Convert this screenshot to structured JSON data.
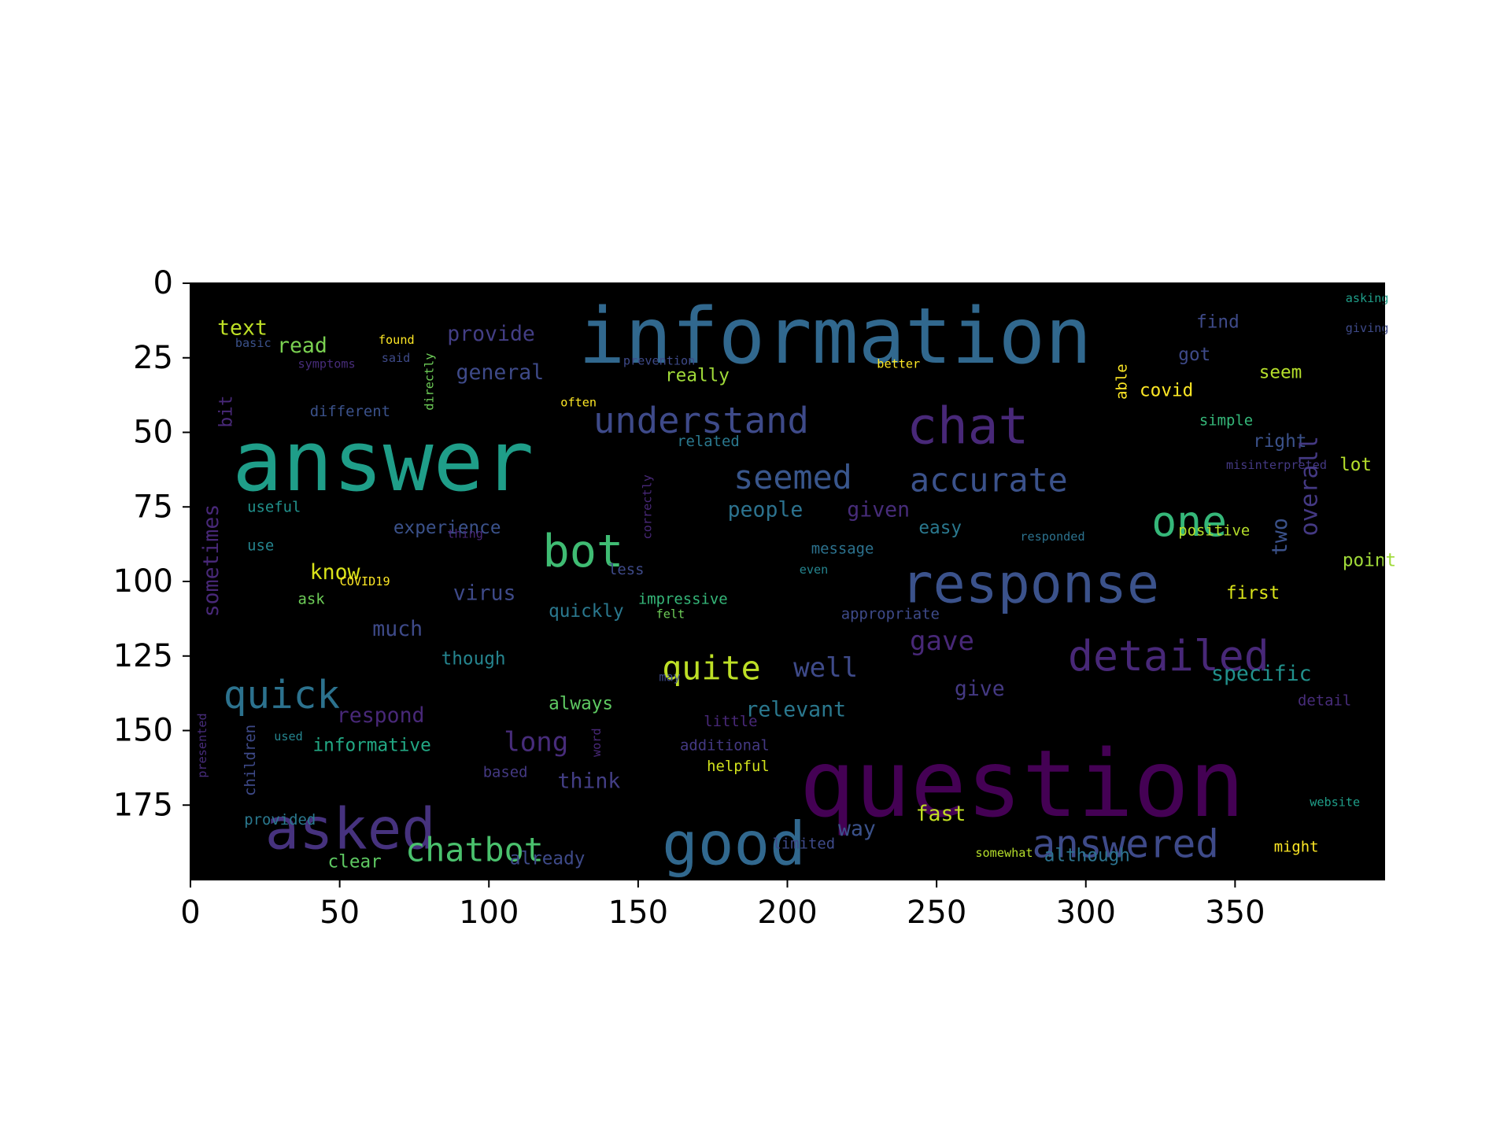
{
  "chart_data": {
    "type": "wordcloud-image",
    "xlim": [
      0,
      400
    ],
    "ylim": [
      0,
      200
    ],
    "y_inverted": true,
    "x_ticks": [
      0,
      50,
      100,
      150,
      200,
      250,
      300,
      350
    ],
    "y_ticks": [
      0,
      25,
      50,
      75,
      100,
      125,
      150,
      175
    ],
    "x_tick_labels": [
      "0",
      "50",
      "100",
      "150",
      "200",
      "250",
      "300",
      "350"
    ],
    "y_tick_labels": [
      "0",
      "25",
      "50",
      "75",
      "100",
      "125",
      "150",
      "175"
    ],
    "background_color": "#000000",
    "colormap": "viridis",
    "words": [
      {
        "text": "information",
        "x": 130,
        "y": 18,
        "size": 26,
        "color": "#31688e"
      },
      {
        "text": "answer",
        "x": 14,
        "y": 60,
        "size": 28,
        "color": "#1f9e89"
      },
      {
        "text": "question",
        "x": 204,
        "y": 168,
        "size": 31,
        "color": "#440154"
      },
      {
        "text": "response",
        "x": 238,
        "y": 101,
        "size": 18,
        "color": "#3b528b"
      },
      {
        "text": "chat",
        "x": 240,
        "y": 48,
        "size": 17,
        "color": "#482878"
      },
      {
        "text": "asked",
        "x": 25,
        "y": 183,
        "size": 19,
        "color": "#46327e"
      },
      {
        "text": "good",
        "x": 158,
        "y": 188,
        "size": 20,
        "color": "#31688e"
      },
      {
        "text": "detailed",
        "x": 294,
        "y": 125,
        "size": 14,
        "color": "#482878"
      },
      {
        "text": "answered",
        "x": 282,
        "y": 188,
        "size": 13,
        "color": "#3e4a89"
      },
      {
        "text": "one",
        "x": 322,
        "y": 80,
        "size": 14,
        "color": "#35b779"
      },
      {
        "text": "quick",
        "x": 11,
        "y": 138,
        "size": 13,
        "color": "#2c728e"
      },
      {
        "text": "bot",
        "x": 118,
        "y": 90,
        "size": 15,
        "color": "#3fbc73"
      },
      {
        "text": "understand",
        "x": 135,
        "y": 46,
        "size": 12,
        "color": "#3e4a89"
      },
      {
        "text": "accurate",
        "x": 241,
        "y": 66,
        "size": 11,
        "color": "#3b528b"
      },
      {
        "text": "seemed",
        "x": 182,
        "y": 65,
        "size": 11,
        "color": "#39568c"
      },
      {
        "text": "chatbot",
        "x": 72,
        "y": 190,
        "size": 11,
        "color": "#4ac16d"
      },
      {
        "text": "quite",
        "x": 158,
        "y": 129,
        "size": 11,
        "color": "#bddf26"
      },
      {
        "text": "well",
        "x": 202,
        "y": 129,
        "size": 9,
        "color": "#3e4a89"
      },
      {
        "text": "gave",
        "x": 241,
        "y": 120,
        "size": 9,
        "color": "#482878"
      },
      {
        "text": "long",
        "x": 105,
        "y": 154,
        "size": 9,
        "color": "#472c7a"
      },
      {
        "text": "text",
        "x": 9,
        "y": 15,
        "size": 7,
        "color": "#bddf26"
      },
      {
        "text": "read",
        "x": 29,
        "y": 21,
        "size": 7,
        "color": "#7ad151"
      },
      {
        "text": "provide",
        "x": 86,
        "y": 17,
        "size": 7,
        "color": "#433e85"
      },
      {
        "text": "general",
        "x": 89,
        "y": 30,
        "size": 7,
        "color": "#3e4a89"
      },
      {
        "text": "really",
        "x": 159,
        "y": 31,
        "size": 6,
        "color": "#a0da39"
      },
      {
        "text": "seem",
        "x": 358,
        "y": 30,
        "size": 6,
        "color": "#b5de2b"
      },
      {
        "text": "covid",
        "x": 318,
        "y": 36,
        "size": 6,
        "color": "#fde725"
      },
      {
        "text": "different",
        "x": 40,
        "y": 43,
        "size": 5,
        "color": "#3b528b"
      },
      {
        "text": "related",
        "x": 163,
        "y": 53,
        "size": 5,
        "color": "#2a788e"
      },
      {
        "text": "people",
        "x": 180,
        "y": 76,
        "size": 7,
        "color": "#2c728e"
      },
      {
        "text": "given",
        "x": 220,
        "y": 76,
        "size": 7,
        "color": "#472c7a"
      },
      {
        "text": "easy",
        "x": 244,
        "y": 82,
        "size": 6,
        "color": "#2a788e"
      },
      {
        "text": "experience",
        "x": 68,
        "y": 82,
        "size": 6,
        "color": "#3b528b"
      },
      {
        "text": "useful",
        "x": 19,
        "y": 75,
        "size": 5,
        "color": "#21918c"
      },
      {
        "text": "know",
        "x": 40,
        "y": 97,
        "size": 7,
        "color": "#d8e219"
      },
      {
        "text": "use",
        "x": 19,
        "y": 88,
        "size": 5,
        "color": "#25848e"
      },
      {
        "text": "ask",
        "x": 36,
        "y": 106,
        "size": 5,
        "color": "#6ece58"
      },
      {
        "text": "virus",
        "x": 88,
        "y": 104,
        "size": 7,
        "color": "#3e4a89"
      },
      {
        "text": "quickly",
        "x": 120,
        "y": 110,
        "size": 6,
        "color": "#2a788e"
      },
      {
        "text": "impressive",
        "x": 150,
        "y": 106,
        "size": 5,
        "color": "#35b779"
      },
      {
        "text": "much",
        "x": 61,
        "y": 116,
        "size": 7,
        "color": "#3e4a89"
      },
      {
        "text": "though",
        "x": 84,
        "y": 126,
        "size": 6,
        "color": "#25848e"
      },
      {
        "text": "always",
        "x": 120,
        "y": 141,
        "size": 6,
        "color": "#5ec962"
      },
      {
        "text": "respond",
        "x": 49,
        "y": 145,
        "size": 7,
        "color": "#482878"
      },
      {
        "text": "informative",
        "x": 41,
        "y": 155,
        "size": 6,
        "color": "#22a884"
      },
      {
        "text": "relevant",
        "x": 186,
        "y": 143,
        "size": 7,
        "color": "#2a788e"
      },
      {
        "text": "give",
        "x": 256,
        "y": 136,
        "size": 7,
        "color": "#443983"
      },
      {
        "text": "specific",
        "x": 342,
        "y": 131,
        "size": 7,
        "color": "#21918c"
      },
      {
        "text": "helpful",
        "x": 173,
        "y": 162,
        "size": 5,
        "color": "#d0e11c"
      },
      {
        "text": "think",
        "x": 123,
        "y": 167,
        "size": 7,
        "color": "#433e85"
      },
      {
        "text": "provided",
        "x": 18,
        "y": 180,
        "size": 5,
        "color": "#2a788e"
      },
      {
        "text": "fast",
        "x": 243,
        "y": 178,
        "size": 7,
        "color": "#c2df23"
      },
      {
        "text": "way",
        "x": 217,
        "y": 183,
        "size": 7,
        "color": "#3b528b"
      },
      {
        "text": "clear",
        "x": 46,
        "y": 194,
        "size": 6,
        "color": "#5ec962"
      },
      {
        "text": "already",
        "x": 107,
        "y": 193,
        "size": 6,
        "color": "#3e4a89"
      },
      {
        "text": "although",
        "x": 286,
        "y": 192,
        "size": 6,
        "color": "#2c728e"
      },
      {
        "text": "first",
        "x": 347,
        "y": 104,
        "size": 6,
        "color": "#d8e219"
      },
      {
        "text": "point",
        "x": 386,
        "y": 93,
        "size": 6,
        "color": "#a0da39"
      },
      {
        "text": "lot",
        "x": 385,
        "y": 61,
        "size": 6,
        "color": "#b5de2b"
      },
      {
        "text": "right",
        "x": 356,
        "y": 53,
        "size": 6,
        "color": "#3b528b"
      },
      {
        "text": "simple",
        "x": 338,
        "y": 46,
        "size": 5,
        "color": "#35b779"
      },
      {
        "text": "got",
        "x": 331,
        "y": 24,
        "size": 6,
        "color": "#3e4a89"
      },
      {
        "text": "find",
        "x": 337,
        "y": 13,
        "size": 6,
        "color": "#3e4a89"
      },
      {
        "text": "message",
        "x": 208,
        "y": 89,
        "size": 5,
        "color": "#2c728e"
      },
      {
        "text": "positive",
        "x": 331,
        "y": 83,
        "size": 5,
        "color": "#b5de2b"
      },
      {
        "text": "less",
        "x": 140,
        "y": 96,
        "size": 5,
        "color": "#3e4a89"
      },
      {
        "text": "appropriate",
        "x": 218,
        "y": 111,
        "size": 5,
        "color": "#3e4a89"
      },
      {
        "text": "little",
        "x": 172,
        "y": 147,
        "size": 5,
        "color": "#482878"
      },
      {
        "text": "additional",
        "x": 164,
        "y": 155,
        "size": 5,
        "color": "#443983"
      },
      {
        "text": "based",
        "x": 98,
        "y": 164,
        "size": 5,
        "color": "#443983"
      },
      {
        "text": "limited",
        "x": 195,
        "y": 188,
        "size": 5,
        "color": "#3e4a89"
      },
      {
        "text": "somewhat",
        "x": 263,
        "y": 191,
        "size": 4,
        "color": "#b5de2b"
      },
      {
        "text": "might",
        "x": 363,
        "y": 189,
        "size": 5,
        "color": "#fde725"
      },
      {
        "text": "detail",
        "x": 371,
        "y": 140,
        "size": 5,
        "color": "#472c7a"
      },
      {
        "text": "misinterpreted",
        "x": 347,
        "y": 61,
        "size": 4,
        "color": "#443983"
      },
      {
        "text": "responded",
        "x": 278,
        "y": 85,
        "size": 4,
        "color": "#2c728e"
      },
      {
        "text": "often",
        "x": 124,
        "y": 40,
        "size": 4,
        "color": "#fde725"
      },
      {
        "text": "better",
        "x": 230,
        "y": 27,
        "size": 4,
        "color": "#fde725"
      },
      {
        "text": "found",
        "x": 63,
        "y": 19,
        "size": 4,
        "color": "#fde725"
      },
      {
        "text": "said",
        "x": 64,
        "y": 25,
        "size": 4,
        "color": "#3e4a89"
      },
      {
        "text": "basic",
        "x": 15,
        "y": 20,
        "size": 4,
        "color": "#3b528b"
      },
      {
        "text": "symptoms",
        "x": 36,
        "y": 27,
        "size": 4,
        "color": "#472c7a"
      },
      {
        "text": "prevention",
        "x": 145,
        "y": 26,
        "size": 4,
        "color": "#3e4a89"
      },
      {
        "text": "asking",
        "x": 387,
        "y": 5,
        "size": 4,
        "color": "#1f9e89"
      },
      {
        "text": "giving",
        "x": 387,
        "y": 15,
        "size": 4,
        "color": "#3e4a89"
      },
      {
        "text": "COVID19",
        "x": 50,
        "y": 100,
        "size": 4,
        "color": "#fde725"
      },
      {
        "text": "thing",
        "x": 86,
        "y": 84,
        "size": 4,
        "color": "#482878"
      },
      {
        "text": "even",
        "x": 204,
        "y": 96,
        "size": 4,
        "color": "#25848e"
      },
      {
        "text": "felt",
        "x": 156,
        "y": 111,
        "size": 4,
        "color": "#6ece58"
      },
      {
        "text": "may",
        "x": 157,
        "y": 132,
        "size": 4,
        "color": "#3e4a89"
      },
      {
        "text": "used",
        "x": 28,
        "y": 152,
        "size": 4,
        "color": "#25848e"
      },
      {
        "text": "website",
        "x": 375,
        "y": 174,
        "size": 4,
        "color": "#1f9e89"
      },
      {
        "text": "two",
        "x": 365,
        "y": 85,
        "size": 7,
        "color": "#3b528b",
        "rotate": true
      },
      {
        "text": "overall",
        "x": 375,
        "y": 68,
        "size": 8,
        "color": "#443983",
        "rotate": true
      },
      {
        "text": "sometimes",
        "x": 7,
        "y": 93,
        "size": 7,
        "color": "#482878",
        "rotate": true
      },
      {
        "text": "children",
        "x": 20,
        "y": 160,
        "size": 5,
        "color": "#3e4a89",
        "rotate": true
      },
      {
        "text": "correctly",
        "x": 153,
        "y": 75,
        "size": 4,
        "color": "#482878",
        "rotate": true
      },
      {
        "text": "directly",
        "x": 80,
        "y": 33,
        "size": 4,
        "color": "#6ece58",
        "rotate": true
      },
      {
        "text": "able",
        "x": 312,
        "y": 33,
        "size": 5,
        "color": "#fde725",
        "rotate": true
      },
      {
        "text": "bit",
        "x": 12,
        "y": 43,
        "size": 6,
        "color": "#482878",
        "rotate": true
      },
      {
        "text": "word",
        "x": 136,
        "y": 154,
        "size": 4,
        "color": "#482878",
        "rotate": true
      },
      {
        "text": "presented",
        "x": 4,
        "y": 155,
        "size": 4,
        "color": "#472c7a",
        "rotate": true
      }
    ]
  }
}
